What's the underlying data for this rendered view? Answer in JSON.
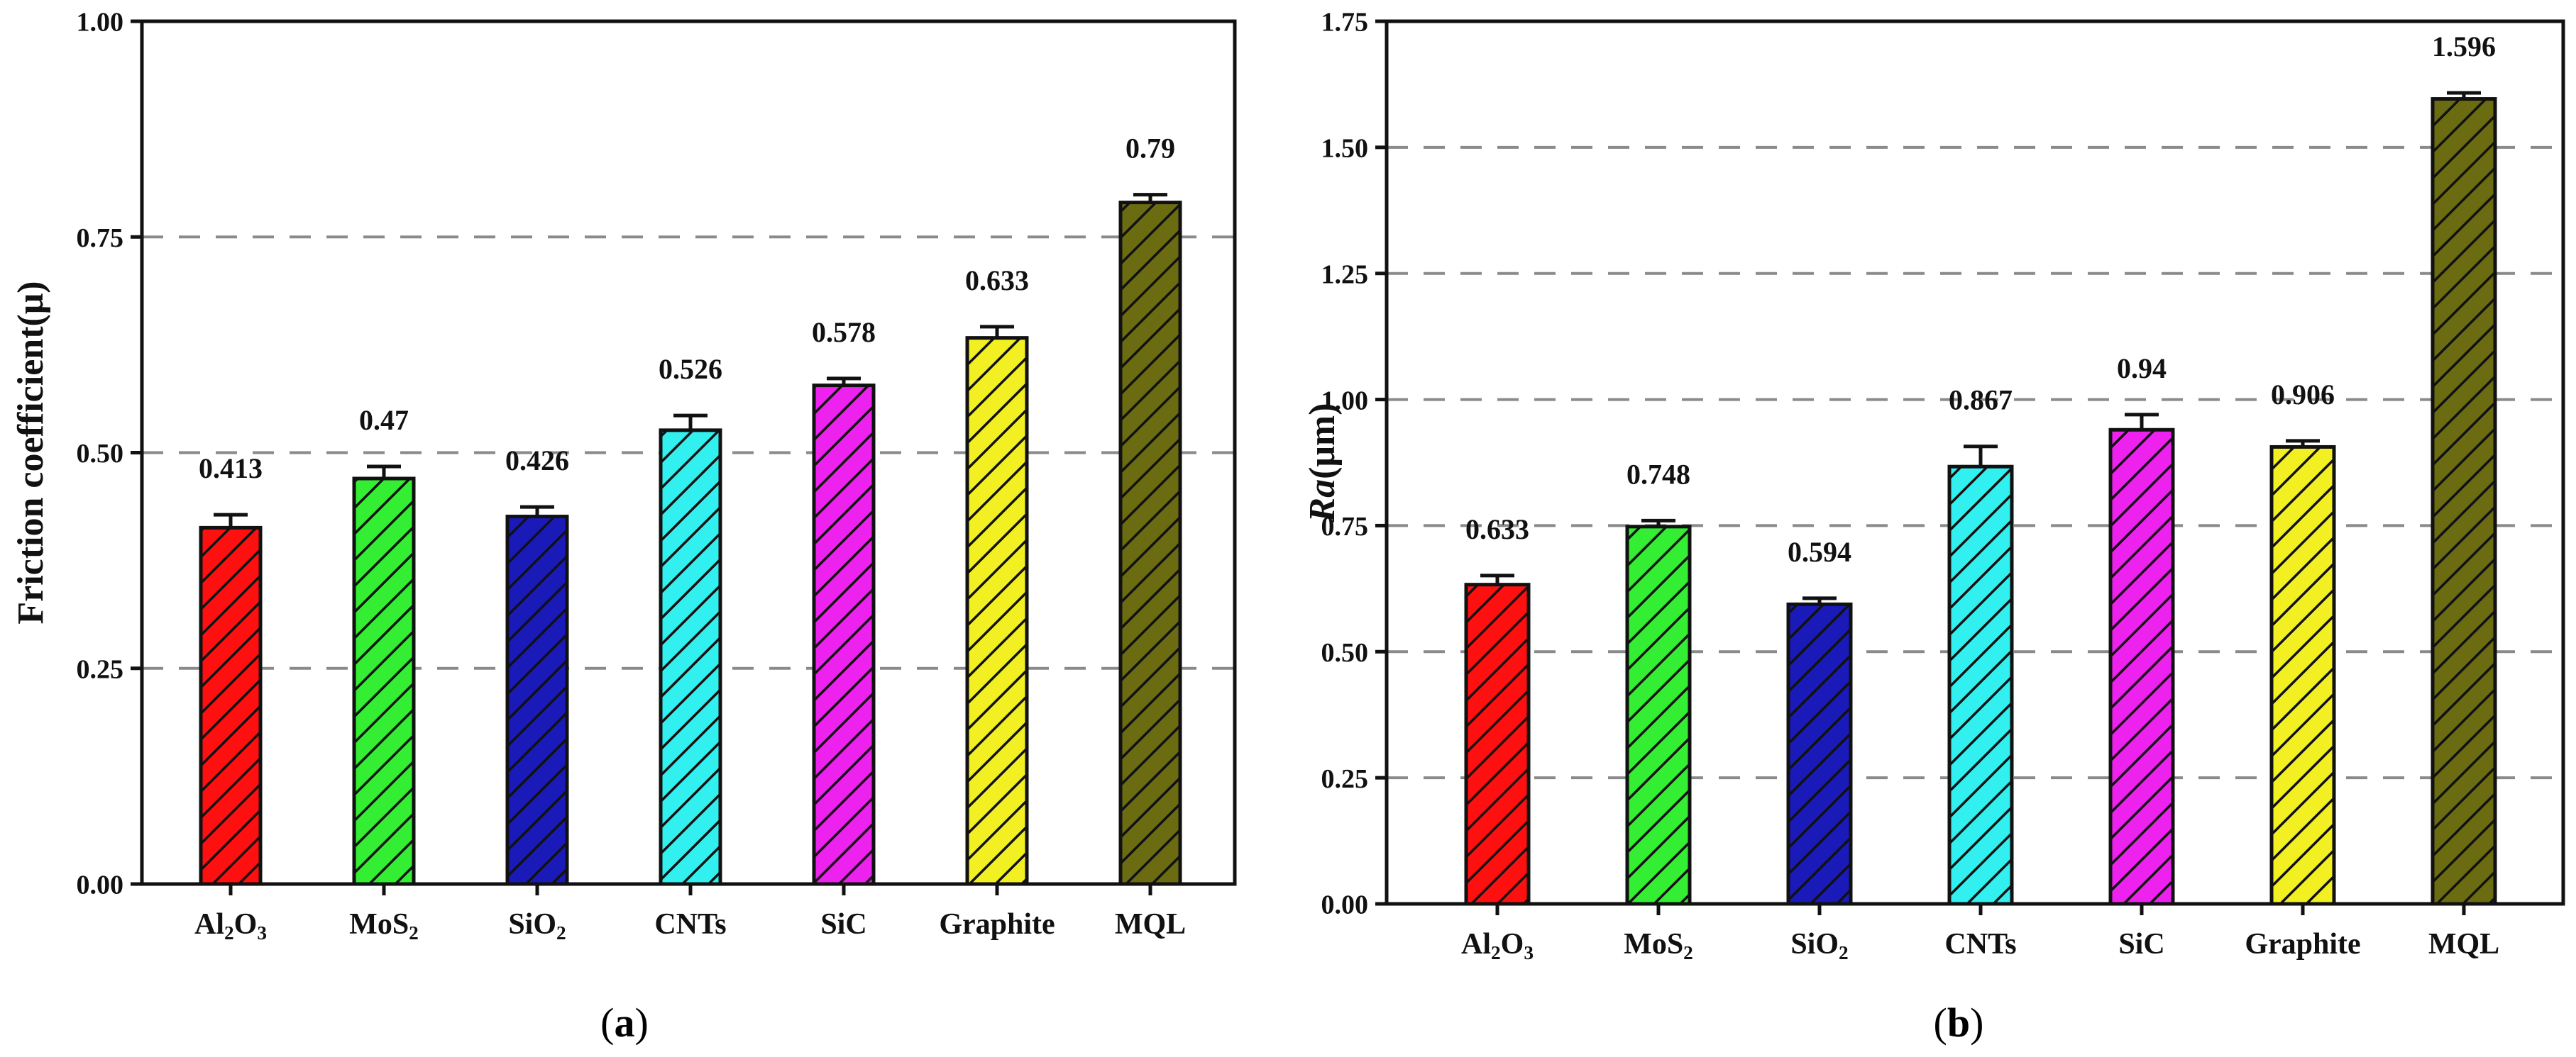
{
  "colors": {
    "Al2O3": "#ff1010",
    "MoS2": "#33ee33",
    "SiO2": "#1a1ab8",
    "CNTs": "#33f0f0",
    "SiC": "#ee22ee",
    "Graphite": "#f2f022",
    "MQL": "#6b6b12"
  },
  "chart_data": [
    {
      "id": "a",
      "type": "bar",
      "caption_letter": "a",
      "ylabel": "Friction coefficient(μ)",
      "ylabel_italic": "",
      "ylabel_rest": "Friction coefficient(μ)",
      "ylim": [
        0,
        1.0
      ],
      "yticks": [
        0.0,
        0.25,
        0.5,
        0.75,
        1.0
      ],
      "ytick_labels": [
        "0.00",
        "0.25",
        "0.50",
        "0.75",
        "1.00"
      ],
      "grid_dashed": [
        0.25,
        0.5,
        0.75
      ],
      "categories": [
        {
          "key": "Al2O3",
          "main": "Al",
          "sub1": "2",
          "mid": "O",
          "sub2": "3"
        },
        {
          "key": "MoS2",
          "main": "MoS",
          "sub1": "2",
          "mid": "",
          "sub2": ""
        },
        {
          "key": "SiO2",
          "main": "SiO",
          "sub1": "2",
          "mid": "",
          "sub2": ""
        },
        {
          "key": "CNTs",
          "main": "CNTs",
          "sub1": "",
          "mid": "",
          "sub2": ""
        },
        {
          "key": "SiC",
          "main": "SiC",
          "sub1": "",
          "mid": "",
          "sub2": ""
        },
        {
          "key": "Graphite",
          "main": "Graphite",
          "sub1": "",
          "mid": "",
          "sub2": ""
        },
        {
          "key": "MQL",
          "main": "MQL",
          "sub1": "",
          "mid": "",
          "sub2": ""
        }
      ],
      "values": [
        0.413,
        0.47,
        0.426,
        0.526,
        0.578,
        0.633,
        0.79
      ],
      "value_labels": [
        "0.413",
        "0.47",
        "0.426",
        "0.526",
        "0.578",
        "0.633",
        "0.79"
      ],
      "errors": [
        0.015,
        0.014,
        0.011,
        0.017,
        0.008,
        0.013,
        0.009
      ]
    },
    {
      "id": "b",
      "type": "bar",
      "caption_letter": "b",
      "ylabel": "Ra(μm)",
      "ylabel_italic": "Ra",
      "ylabel_rest": "(μm)",
      "ylim": [
        0,
        1.75
      ],
      "yticks": [
        0.0,
        0.25,
        0.5,
        0.75,
        1.0,
        1.25,
        1.5,
        1.75
      ],
      "ytick_labels": [
        "0.00",
        "0.25",
        "0.50",
        "0.75",
        "1.00",
        "1.25",
        "1.50",
        "1.75"
      ],
      "grid_dashed": [
        0.25,
        0.5,
        0.75,
        1.0,
        1.25,
        1.5
      ],
      "categories": [
        {
          "key": "Al2O3",
          "main": "Al",
          "sub1": "2",
          "mid": "O",
          "sub2": "3"
        },
        {
          "key": "MoS2",
          "main": "MoS",
          "sub1": "2",
          "mid": "",
          "sub2": ""
        },
        {
          "key": "SiO2",
          "main": "SiO",
          "sub1": "2",
          "mid": "",
          "sub2": ""
        },
        {
          "key": "CNTs",
          "main": "CNTs",
          "sub1": "",
          "mid": "",
          "sub2": ""
        },
        {
          "key": "SiC",
          "main": "SiC",
          "sub1": "",
          "mid": "",
          "sub2": ""
        },
        {
          "key": "Graphite",
          "main": "Graphite",
          "sub1": "",
          "mid": "",
          "sub2": ""
        },
        {
          "key": "MQL",
          "main": "MQL",
          "sub1": "",
          "mid": "",
          "sub2": ""
        }
      ],
      "values": [
        0.633,
        0.748,
        0.594,
        0.867,
        0.94,
        0.906,
        1.596
      ],
      "value_labels": [
        "0.633",
        "0.748",
        "0.594",
        "0.867",
        "0.94",
        "0.906",
        "1.596"
      ],
      "errors": [
        0.018,
        0.012,
        0.012,
        0.04,
        0.03,
        0.012,
        0.012
      ]
    }
  ]
}
